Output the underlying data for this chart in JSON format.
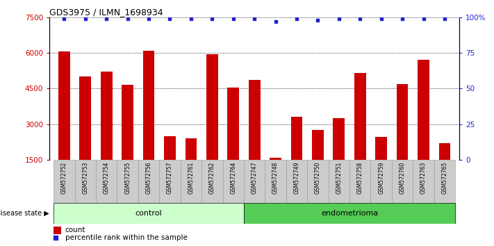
{
  "title": "GDS3975 / ILMN_1698934",
  "samples": [
    "GSM572752",
    "GSM572753",
    "GSM572754",
    "GSM572755",
    "GSM572756",
    "GSM572757",
    "GSM572761",
    "GSM572762",
    "GSM572764",
    "GSM572747",
    "GSM572748",
    "GSM572749",
    "GSM572750",
    "GSM572751",
    "GSM572758",
    "GSM572759",
    "GSM572760",
    "GSM572763",
    "GSM572765"
  ],
  "counts": [
    6050,
    5000,
    5200,
    4650,
    6100,
    2500,
    2400,
    5950,
    4550,
    4850,
    1600,
    3300,
    2750,
    3250,
    5150,
    2450,
    4700,
    5700,
    2200
  ],
  "percentiles": [
    99,
    99,
    99,
    99,
    99,
    99,
    99,
    99,
    99,
    99,
    97,
    99,
    98,
    99,
    99,
    99,
    99,
    99,
    99
  ],
  "n_control": 9,
  "bar_color": "#cc0000",
  "dot_color": "#2222cc",
  "ylim_left": [
    1500,
    7500
  ],
  "ylim_right": [
    0,
    100
  ],
  "yticks_left": [
    1500,
    3000,
    4500,
    6000,
    7500
  ],
  "yticks_right": [
    0,
    25,
    50,
    75,
    100
  ],
  "control_color": "#ccffcc",
  "endometrioma_color": "#55cc55",
  "sample_box_color": "#cccccc",
  "xlabel_color": "#cc0000",
  "ylabel_right_color": "#2222cc",
  "background_color": "#ffffff",
  "legend_count_label": "count",
  "legend_pct_label": "percentile rank within the sample",
  "disease_state_label": "disease state",
  "control_label": "control",
  "endometrioma_label": "endometrioma"
}
